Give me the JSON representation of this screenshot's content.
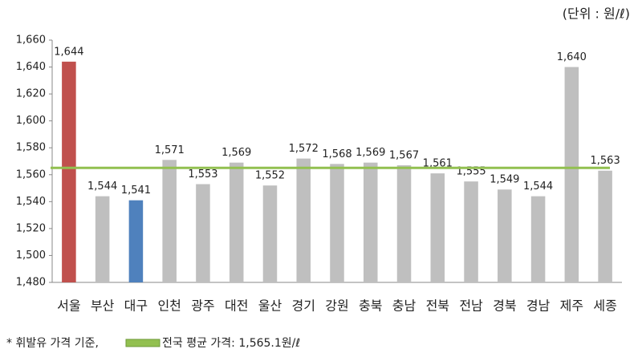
{
  "chart_data": {
    "type": "bar",
    "unit": "(단위 : 원/ℓ)",
    "note": "* 휘발유 가격 기준,",
    "categories": [
      "서울",
      "부산",
      "대구",
      "인천",
      "광주",
      "대전",
      "울산",
      "경기",
      "강원",
      "충북",
      "충남",
      "전북",
      "전남",
      "경북",
      "경남",
      "제주",
      "세종"
    ],
    "values": [
      1644,
      1544,
      1541,
      1571,
      1553,
      1569,
      1552,
      1572,
      1568,
      1569,
      1567,
      1561,
      1555,
      1549,
      1544,
      1640,
      1563
    ],
    "value_labels": [
      "1,644",
      "1,544",
      "1,541",
      "1,571",
      "1,553",
      "1,569",
      "1,552",
      "1,572",
      "1,568",
      "1,569",
      "1,567",
      "1,561",
      "1,555",
      "1,549",
      "1,544",
      "1,640",
      "1,563"
    ],
    "colors": [
      "#c0504d",
      "#bfbfbf",
      "#4f81bd",
      "#bfbfbf",
      "#bfbfbf",
      "#bfbfbf",
      "#bfbfbf",
      "#bfbfbf",
      "#bfbfbf",
      "#bfbfbf",
      "#bfbfbf",
      "#bfbfbf",
      "#bfbfbf",
      "#bfbfbf",
      "#bfbfbf",
      "#bfbfbf",
      "#bfbfbf"
    ],
    "ylim": [
      1480,
      1660
    ],
    "yticks": [
      {
        "value": 1480,
        "label": "1,480"
      },
      {
        "value": 1500,
        "label": "1,500"
      },
      {
        "value": 1520,
        "label": "1,520"
      },
      {
        "value": 1540,
        "label": "1,540"
      },
      {
        "value": 1560,
        "label": "1,560"
      },
      {
        "value": 1580,
        "label": "1,580"
      },
      {
        "value": 1600,
        "label": "1,600"
      },
      {
        "value": 1620,
        "label": "1,620"
      },
      {
        "value": 1640,
        "label": "1,640"
      },
      {
        "value": 1660,
        "label": "1,660"
      }
    ],
    "reference_line": {
      "value": 1565.1,
      "label": "전국 평균 가격: 1,565.1원/ℓ",
      "color": "#92c050"
    }
  }
}
